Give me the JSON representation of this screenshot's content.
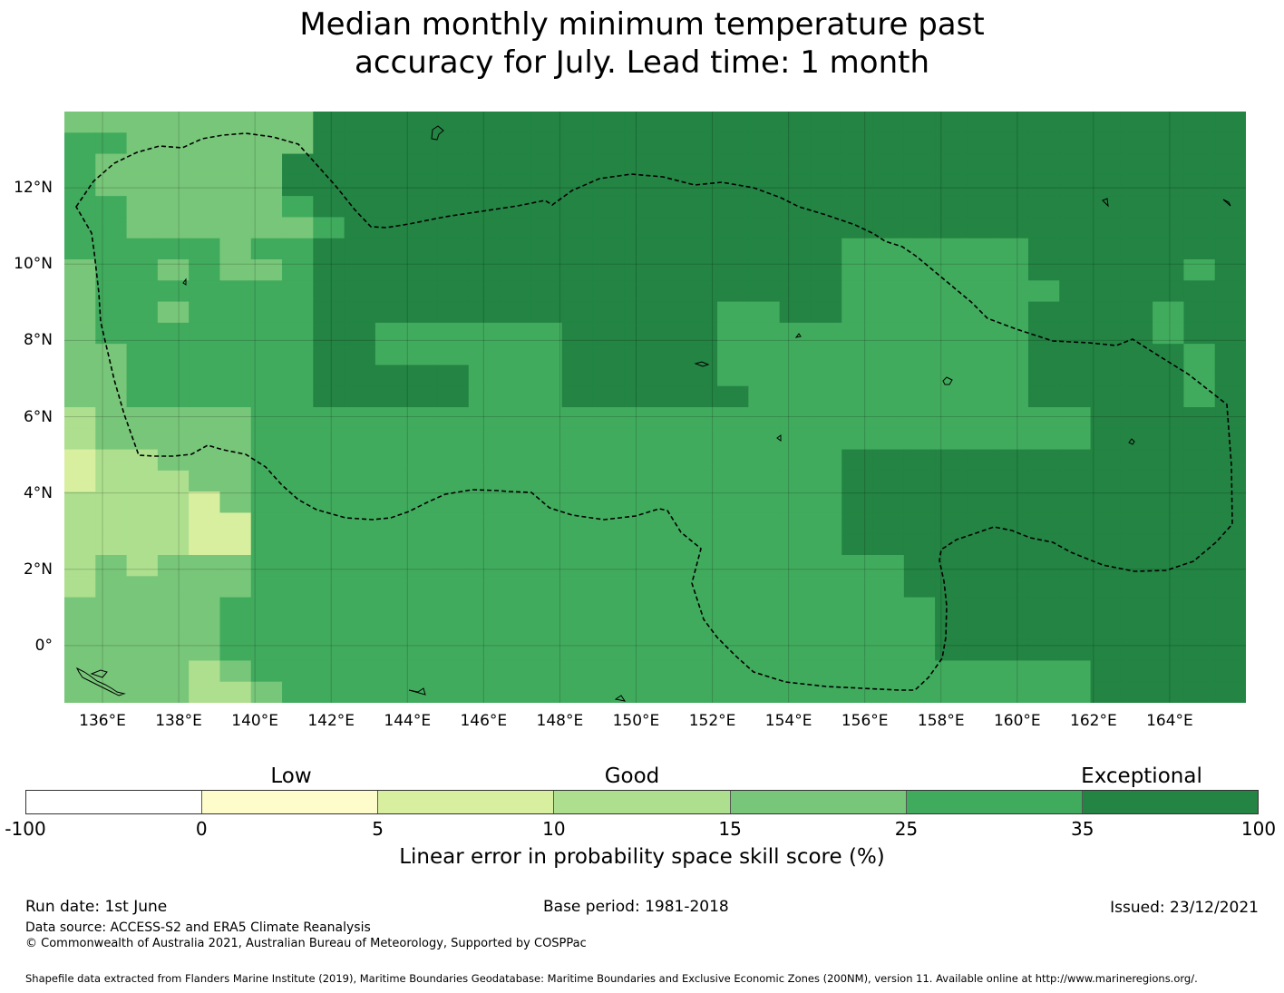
{
  "title": {
    "line1": "Median monthly minimum temperature past",
    "line2": "accuracy for July. Lead time: 1 month"
  },
  "map": {
    "lat_labels": [
      "12°N",
      "10°N",
      "8°N",
      "6°N",
      "4°N",
      "2°N",
      "0°"
    ],
    "lon_labels": [
      "136°E",
      "138°E",
      "140°E",
      "142°E",
      "144°E",
      "146°E",
      "148°E",
      "150°E",
      "152°E",
      "154°E",
      "156°E",
      "158°E",
      "160°E",
      "162°E",
      "164°E"
    ],
    "lat_range_deg": [
      -1.5,
      14.0
    ],
    "lon_range_deg": [
      135.0,
      166.0
    ],
    "grid_step_deg": 0.833,
    "boundary": "dashed EEZ outline",
    "land": "small island outlines"
  },
  "colorbar": {
    "category_labels": {
      "low": "Low",
      "good": "Good",
      "exceptional": "Exceptional"
    },
    "ticks": [
      "-100",
      "0",
      "5",
      "10",
      "15",
      "25",
      "35",
      "100"
    ],
    "colors": [
      "#ffffff",
      "#fffccb",
      "#d9efa0",
      "#addf8e",
      "#78c679",
      "#41ab5d",
      "#238443"
    ],
    "label": "Linear error in probability space skill score (%)"
  },
  "footer": {
    "run_date": "Run date: 1st June",
    "base_period": "Base period: 1981-2018",
    "issued": "Issued: 23/12/2021",
    "data_source": "Data source: ACCESS-S2 and ERA5 Climate Reanalysis",
    "copyright": "© Commonwealth of Australia 2021, Australian Bureau of Meteorology, Supported by COSPPac",
    "shapefile": "Shapefile data extracted from Flanders Marine Institute (2019), Maritime Boundaries Geodatabase: Maritime Boundaries and Exclusive Economic Zones (200NM), version 11. Available online at http://www.marineregions.org/."
  }
}
